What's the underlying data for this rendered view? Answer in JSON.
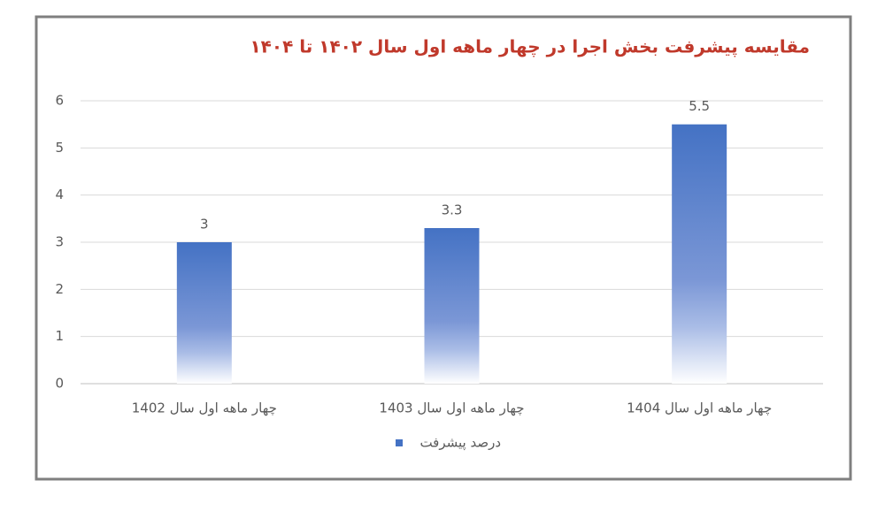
{
  "chart_data": {
    "type": "bar",
    "title": "مقایسه پیشرفت بخش اجرا در چهار ماهه  اول سال ۱۴۰۲ تا ۱۴۰۴",
    "categories": [
      "چهار ماهه اول سال 1402",
      "چهار ماهه اول سال 1403",
      "چهار ماهه اول سال 1404"
    ],
    "series": [
      {
        "name": "درصد پیشرفت",
        "color": "#4472c4",
        "values": [
          3,
          3.3,
          5.5
        ]
      }
    ],
    "ylim": [
      0,
      6
    ],
    "yticks": [
      0,
      1,
      2,
      3,
      4,
      5,
      6
    ],
    "grid": true,
    "legend": "bottom"
  }
}
